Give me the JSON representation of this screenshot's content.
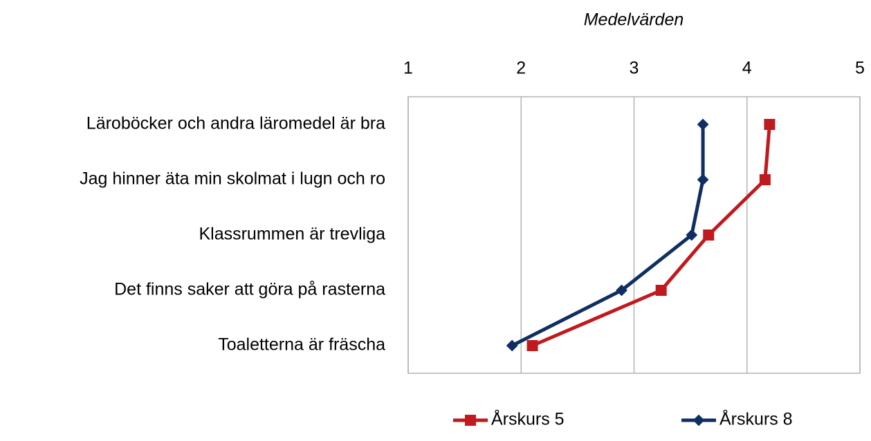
{
  "chart_data": {
    "type": "line",
    "orientation": "horizontal",
    "title": "Medelvärden",
    "categories": [
      "Läroböcker och andra läromedel är bra",
      "Jag hinner äta min skolmat i lugn och ro",
      "Klassrummen är trevliga",
      "Det finns saker att göra på rasterna",
      "Toaletterna är fräscha"
    ],
    "series": [
      {
        "name": "Årskurs 5",
        "color": "#c0191e",
        "marker": "square",
        "values": [
          4.2,
          4.16,
          3.66,
          3.24,
          2.1
        ]
      },
      {
        "name": "Årskurs 8",
        "color": "#0f2f63",
        "marker": "diamond",
        "values": [
          3.61,
          3.61,
          3.51,
          2.89,
          1.92
        ]
      }
    ],
    "xlim": [
      1,
      5
    ],
    "xticks": [
      1,
      2,
      3,
      4,
      5
    ],
    "grid": true,
    "legend": "bottom"
  }
}
